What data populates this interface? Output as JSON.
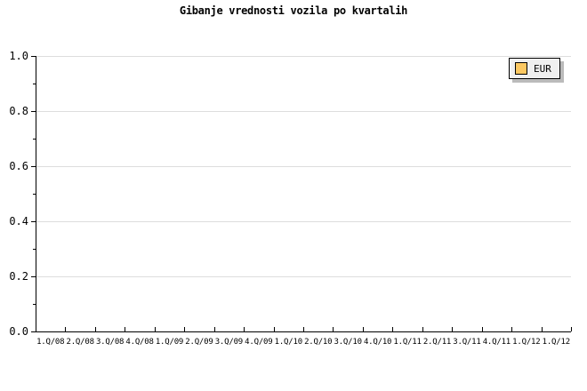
{
  "page": {
    "background": "#ffffff"
  },
  "chart_data": {
    "type": "line",
    "title": "Gibanje vrednosti vozila po kvartalih",
    "xlabel": "",
    "ylabel": "",
    "categories": [
      "1.Q/08",
      "2.Q/08",
      "3.Q/08",
      "4.Q/08",
      "1.Q/09",
      "2.Q/09",
      "3.Q/09",
      "4.Q/09",
      "1.Q/10",
      "2.Q/10",
      "3.Q/10",
      "4.Q/10",
      "1.Q/11",
      "2.Q/11",
      "3.Q/11",
      "4.Q/11",
      "1.Q/12",
      "1.Q/12"
    ],
    "series": [
      {
        "name": "EUR",
        "color": "#fcc862",
        "values": []
      }
    ],
    "ylim": [
      0,
      1
    ],
    "ytick_labels": [
      "0.0",
      "0.2",
      "0.4",
      "0.6",
      "0.8",
      "1.0"
    ],
    "y_minor_tick_step": 0.1,
    "grid": "horizontal-major-only",
    "grid_color": "#dddddd",
    "axis_color": "#000000",
    "legend_position": "top-right",
    "legend": {
      "items": [
        {
          "label": "EUR",
          "swatch_color": "#fcc862"
        }
      ]
    }
  }
}
